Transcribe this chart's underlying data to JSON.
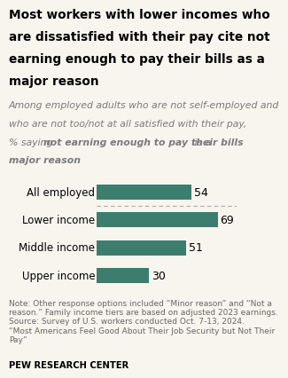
{
  "title_line1": "Most workers with lower incomes who",
  "title_line2": "are dissatisfied with their pay cite not",
  "title_line3": "earning enough to pay their bills as a",
  "title_line4": "major reason",
  "sub1": "Among employed adults who are not self-employed and",
  "sub2": "who are not too/not at all satisfied with their pay,",
  "sub3_pre": "% saying ",
  "sub3_bold": "not earning enough to pay their bills",
  "sub3_post": " is a",
  "sub4": "major reason",
  "categories": [
    "All employed",
    "Lower income",
    "Middle income",
    "Upper income"
  ],
  "values": [
    54,
    69,
    51,
    30
  ],
  "bar_color": "#3d7d6e",
  "xlim": [
    0,
    80
  ],
  "background_color": "#f8f5ee",
  "note_text": "Note: Other response options included “Minor reason” and “Not a\nreason.” Family income tiers are based on adjusted 2023 earnings.\nSource: Survey of U.S. workers conducted Oct. 7-13, 2024.\n“Most Americans Feel Good About Their Job Security but Not Their\nPay”",
  "source_label": "PEW RESEARCH CENTER",
  "title_fontsize": 9.8,
  "subtitle_fontsize": 7.8,
  "bar_label_fontsize": 9,
  "cat_label_fontsize": 8.5,
  "note_fontsize": 6.5,
  "source_fontsize": 7.2
}
